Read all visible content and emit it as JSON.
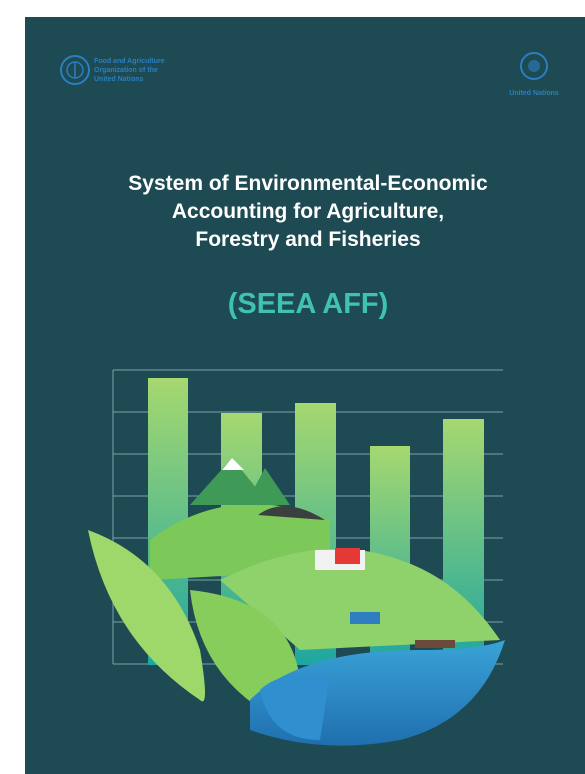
{
  "header": {
    "fao_name": [
      "Food and Agriculture",
      "Organization of the",
      "United Nations"
    ],
    "un_name": "United Nations"
  },
  "title": {
    "lines": [
      "System of Environmental-Economic",
      "Accounting for Agriculture,",
      "Forestry and Fisheries"
    ],
    "acronym": "(SEEA AFF)"
  }
}
